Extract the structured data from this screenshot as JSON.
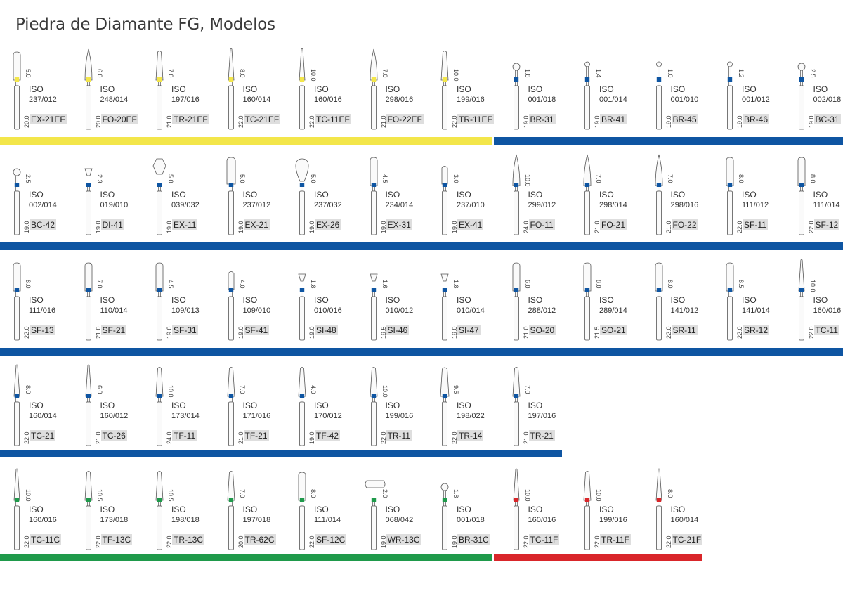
{
  "title": "Piedra de Diamante FG, Modelos",
  "colors": {
    "yellow": "#f3e64a",
    "blue": "#0e55a2",
    "green": "#1f9a4b",
    "red": "#d9262a"
  },
  "iso_label": "ISO",
  "rows": [
    {
      "bars": [
        {
          "color": "yellow",
          "from": 0,
          "to": 700
        },
        {
          "color": "blue",
          "from": 703,
          "to": 1200
        }
      ],
      "items": [
        {
          "code": "EX-21EF",
          "iso": "237/012",
          "head": "5.0",
          "total": "20.0",
          "band": "yellow",
          "shape": "cyl"
        },
        {
          "code": "FO-20EF",
          "iso": "248/014",
          "head": "6.0",
          "total": "20.0",
          "band": "yellow",
          "shape": "flame"
        },
        {
          "code": "TR-21EF",
          "iso": "197/016",
          "head": "7.0",
          "total": "21.0",
          "band": "yellow",
          "shape": "taper"
        },
        {
          "code": "TC-21EF",
          "iso": "160/014",
          "head": "8.0",
          "total": "22.0",
          "band": "yellow",
          "shape": "needle"
        },
        {
          "code": "TC-11EF",
          "iso": "160/016",
          "head": "10.0",
          "total": "22.0",
          "band": "yellow",
          "shape": "needle"
        },
        {
          "code": "FO-22EF",
          "iso": "298/016",
          "head": "7.0",
          "total": "21.0",
          "band": "yellow",
          "shape": "flame"
        },
        {
          "code": "TR-11EF",
          "iso": "199/016",
          "head": "10.0",
          "total": "22.0",
          "band": "yellow",
          "shape": "taper"
        },
        {
          "code": "BR-31",
          "iso": "001/018",
          "head": "1.8",
          "total": "19.0",
          "band": "blue",
          "shape": "ball"
        },
        {
          "code": "BR-41",
          "iso": "001/014",
          "head": "1.4",
          "total": "19.0",
          "band": "blue",
          "shape": "ballsm"
        },
        {
          "code": "BR-45",
          "iso": "001/010",
          "head": "1.0",
          "total": "19.0",
          "band": "blue",
          "shape": "ballsm"
        },
        {
          "code": "BR-46",
          "iso": "001/012",
          "head": "1.2",
          "total": "19.0",
          "band": "blue",
          "shape": "ballsm"
        },
        {
          "code": "BC-31",
          "iso": "002/018",
          "head": "2.5",
          "total": "19.0",
          "band": "blue",
          "shape": "ball"
        }
      ]
    },
    {
      "bars": [
        {
          "color": "blue",
          "from": 0,
          "to": 1200
        }
      ],
      "items": [
        {
          "code": "BC-42",
          "iso": "002/014",
          "head": "2.5",
          "total": "19.0",
          "band": "blue",
          "shape": "ball"
        },
        {
          "code": "DI-41",
          "iso": "019/010",
          "head": "2.3",
          "total": "19.0",
          "band": "blue",
          "shape": "invcone"
        },
        {
          "code": "EX-11",
          "iso": "039/032",
          "head": "5.0",
          "total": "19.0",
          "band": "blue",
          "shape": "barrel"
        },
        {
          "code": "EX-21",
          "iso": "237/012",
          "head": "5.0",
          "total": "19.0",
          "band": "blue",
          "shape": "cylw"
        },
        {
          "code": "EX-26",
          "iso": "237/032",
          "head": "5.0",
          "total": "19.0",
          "band": "blue",
          "shape": "egg"
        },
        {
          "code": "EX-31",
          "iso": "234/014",
          "head": "4.5",
          "total": "19.0",
          "band": "blue",
          "shape": "cyl"
        },
        {
          "code": "EX-41",
          "iso": "237/010",
          "head": "3.0",
          "total": "19.0",
          "band": "blue",
          "shape": "cylsm"
        },
        {
          "code": "FO-11",
          "iso": "299/012",
          "head": "10.0",
          "total": "24.0",
          "band": "blue",
          "shape": "flame"
        },
        {
          "code": "FO-21",
          "iso": "298/014",
          "head": "7.0",
          "total": "21.0",
          "band": "blue",
          "shape": "flame"
        },
        {
          "code": "FO-22",
          "iso": "298/016",
          "head": "7.0",
          "total": "21.0",
          "band": "blue",
          "shape": "flame"
        },
        {
          "code": "SF-11",
          "iso": "111/012",
          "head": "8.0",
          "total": "22.0",
          "band": "blue",
          "shape": "cyl"
        },
        {
          "code": "SF-12",
          "iso": "111/014",
          "head": "8.0",
          "total": "22.0",
          "band": "blue",
          "shape": "cyl"
        }
      ]
    },
    {
      "bars": [
        {
          "color": "blue",
          "from": 0,
          "to": 1200
        }
      ],
      "items": [
        {
          "code": "SF-13",
          "iso": "111/016",
          "head": "8.0",
          "total": "22.0",
          "band": "blue",
          "shape": "cyl"
        },
        {
          "code": "SF-21",
          "iso": "110/014",
          "head": "7.0",
          "total": "21.0",
          "band": "blue",
          "shape": "cyl"
        },
        {
          "code": "SF-31",
          "iso": "109/013",
          "head": "4.5",
          "total": "19.0",
          "band": "blue",
          "shape": "cyl"
        },
        {
          "code": "SF-41",
          "iso": "109/010",
          "head": "4.0",
          "total": "19.0",
          "band": "blue",
          "shape": "cylsm"
        },
        {
          "code": "SI-48",
          "iso": "010/016",
          "head": "1.8",
          "total": "19.0",
          "band": "blue",
          "shape": "invcone"
        },
        {
          "code": "SI-46",
          "iso": "010/012",
          "head": "1.6",
          "total": "19.5",
          "band": "blue",
          "shape": "invcone"
        },
        {
          "code": "SI-47",
          "iso": "010/014",
          "head": "1.8",
          "total": "19.0",
          "band": "blue",
          "shape": "invcone"
        },
        {
          "code": "SO-20",
          "iso": "288/012",
          "head": "6.0",
          "total": "21.0",
          "band": "blue",
          "shape": "cyl"
        },
        {
          "code": "SO-21",
          "iso": "289/014",
          "head": "8.0",
          "total": "21.5",
          "band": "blue",
          "shape": "cyl"
        },
        {
          "code": "SR-11",
          "iso": "141/012",
          "head": "8.0",
          "total": "22.0",
          "band": "blue",
          "shape": "cyl"
        },
        {
          "code": "SR-12",
          "iso": "141/014",
          "head": "8.5",
          "total": "22.0",
          "band": "blue",
          "shape": "cyl"
        },
        {
          "code": "TC-11",
          "iso": "160/016",
          "head": "10.0",
          "total": "22.0",
          "band": "blue",
          "shape": "needle"
        }
      ]
    },
    {
      "bars": [
        {
          "color": "blue",
          "from": 0,
          "to": 800
        }
      ],
      "items": [
        {
          "code": "TC-21",
          "iso": "160/014",
          "head": "8.0",
          "total": "22.0",
          "band": "blue",
          "shape": "needle"
        },
        {
          "code": "TC-26",
          "iso": "160/012",
          "head": "6.0",
          "total": "21.0",
          "band": "blue",
          "shape": "needle"
        },
        {
          "code": "TF-11",
          "iso": "173/014",
          "head": "10.0",
          "total": "24.0",
          "band": "blue",
          "shape": "taper"
        },
        {
          "code": "TF-21",
          "iso": "171/016",
          "head": "7.0",
          "total": "21.0",
          "band": "blue",
          "shape": "taper"
        },
        {
          "code": "TF-42",
          "iso": "170/012",
          "head": "4.0",
          "total": "19.0",
          "band": "blue",
          "shape": "taper"
        },
        {
          "code": "TR-11",
          "iso": "199/016",
          "head": "10.0",
          "total": "22.0",
          "band": "blue",
          "shape": "taper"
        },
        {
          "code": "TR-14",
          "iso": "198/022",
          "head": "9.5",
          "total": "22.0",
          "band": "blue",
          "shape": "taperw"
        },
        {
          "code": "TR-21",
          "iso": "197/016",
          "head": "7.0",
          "total": "21.0",
          "band": "blue",
          "shape": "taper"
        }
      ]
    },
    {
      "bars": [
        {
          "color": "green",
          "from": 0,
          "to": 700
        },
        {
          "color": "red",
          "from": 703,
          "to": 1000
        }
      ],
      "items": [
        {
          "code": "TC-11C",
          "iso": "160/016",
          "head": "10.0",
          "total": "22.0",
          "band": "green",
          "shape": "needle"
        },
        {
          "code": "TF-13C",
          "iso": "173/018",
          "head": "10.5",
          "total": "22.0",
          "band": "green",
          "shape": "taper"
        },
        {
          "code": "TR-13C",
          "iso": "198/018",
          "head": "10.5",
          "total": "22.0",
          "band": "green",
          "shape": "taper"
        },
        {
          "code": "TR-62C",
          "iso": "197/018",
          "head": "7.0",
          "total": "20.0",
          "band": "green",
          "shape": "taper"
        },
        {
          "code": "SF-12C",
          "iso": "111/014",
          "head": "8.0",
          "total": "22.0",
          "band": "green",
          "shape": "cyl"
        },
        {
          "code": "WR-13C",
          "iso": "068/042",
          "head": "2.0",
          "total": "19.0",
          "band": "green",
          "shape": "wheel"
        },
        {
          "code": "BR-31C",
          "iso": "001/018",
          "head": "1.8",
          "total": "19.0",
          "band": "green",
          "shape": "ball"
        },
        {
          "code": "TC-11F",
          "iso": "160/016",
          "head": "10.0",
          "total": "22.0",
          "band": "red",
          "shape": "needle"
        },
        {
          "code": "TR-11F",
          "iso": "199/016",
          "head": "10.0",
          "total": "22.0",
          "band": "red",
          "shape": "taper"
        },
        {
          "code": "TC-21F",
          "iso": "160/014",
          "head": "8.0",
          "total": "22.0",
          "band": "red",
          "shape": "needle"
        }
      ]
    }
  ]
}
